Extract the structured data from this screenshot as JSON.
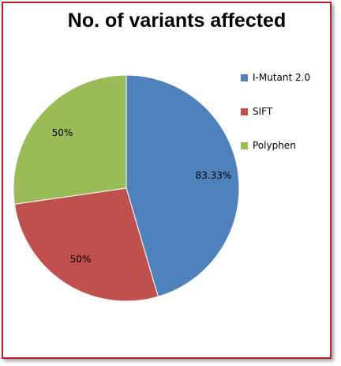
{
  "chart_data": {
    "type": "pie",
    "title": "No. of variants affected",
    "categories": [
      "I-Mutant 2.0",
      "SIFT",
      "Polyphen"
    ],
    "values": [
      83.33,
      50,
      50
    ],
    "data_labels": [
      "83.33%",
      "50%",
      "50%"
    ],
    "colors": [
      "#4f81bd",
      "#c0504d",
      "#9bbb59"
    ],
    "legend_position": "right"
  }
}
